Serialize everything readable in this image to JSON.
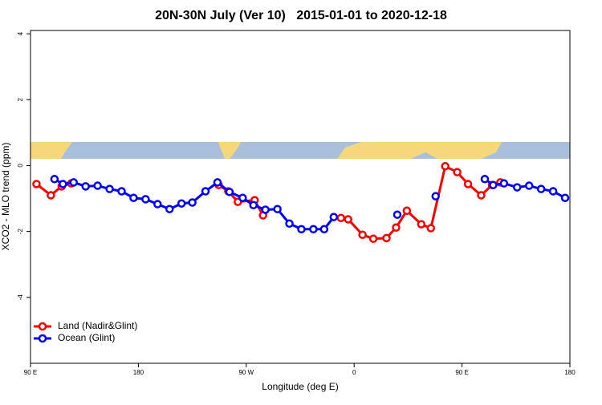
{
  "chart_data": {
    "type": "line",
    "title": "20N-30N July (Ver 10)   2015-01-01 to 2020-12-18",
    "xlabel": "Longitude (deg E)",
    "ylabel": "XCO2 - MLO trend (ppm)",
    "xlim": [
      90,
      540
    ],
    "ylim": [
      -6,
      4.1
    ],
    "xticks": [
      {
        "value": 90,
        "label": "90 E"
      },
      180,
      {
        "value": 270,
        "label": "90 W"
      },
      {
        "value": 360,
        "label": "0"
      },
      {
        "value": 450,
        "label": "90 E"
      },
      {
        "value": 540,
        "label": "180"
      }
    ],
    "yticks": [
      4,
      2,
      0,
      -2,
      -4
    ],
    "legend": "bottomleft",
    "series": [
      {
        "name": "Land (Nadir&Glint)",
        "color": "#ff0000",
        "x": [
          95,
          107,
          116,
          124,
          200,
          247,
          255,
          263,
          277,
          284,
          320,
          349,
          355,
          367,
          376,
          387,
          395,
          404,
          416,
          424,
          436,
          446,
          455,
          466,
          475,
          482
        ],
        "values": [
          -0.56,
          -0.9,
          -0.63,
          -0.54,
          null,
          -0.59,
          -0.78,
          -1.1,
          -1.05,
          -1.51,
          null,
          -1.59,
          -1.63,
          -2.1,
          -2.22,
          -2.2,
          -1.88,
          -1.37,
          -1.78,
          -1.9,
          -0.02,
          -0.2,
          -0.56,
          -0.9,
          -0.59,
          -0.51
        ]
      },
      {
        "name": "Ocean (Glint)",
        "color": "#0000ff",
        "x": [
          110,
          117,
          126,
          136,
          146,
          156,
          166,
          176,
          186,
          196,
          206,
          216,
          225,
          236,
          246,
          256,
          267,
          276,
          286,
          296,
          306,
          316,
          326,
          335,
          343,
          370,
          396,
          410,
          428,
          450,
          469,
          476,
          485,
          496,
          506,
          516,
          526,
          536
        ],
        "values": [
          -0.41,
          -0.56,
          -0.51,
          -0.63,
          -0.61,
          -0.71,
          -0.78,
          -0.98,
          -1.02,
          -1.17,
          -1.32,
          -1.15,
          -1.12,
          -0.78,
          -0.51,
          -0.8,
          -0.98,
          -1.2,
          -1.34,
          -1.32,
          -1.76,
          -1.93,
          -1.93,
          -1.93,
          -1.56,
          null,
          -1.49,
          null,
          -0.93,
          null,
          -0.41,
          -0.59,
          -0.54,
          -0.66,
          -0.61,
          -0.71,
          -0.78,
          -0.98
        ]
      }
    ]
  }
}
